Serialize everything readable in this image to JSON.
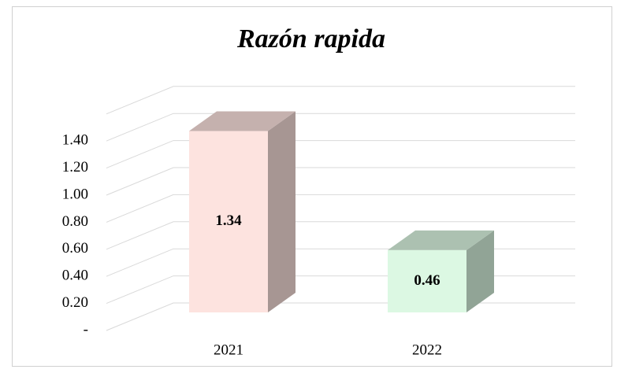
{
  "chart_data": {
    "type": "bar3d",
    "title": "Razón rapida",
    "categories": [
      "2021",
      "2022"
    ],
    "values": [
      1.34,
      0.46
    ],
    "colors": [
      "#fde3df",
      "#dcf8e3"
    ],
    "ylim": [
      0,
      1.6
    ],
    "yticks": [
      {
        "value": 0,
        "label": "-"
      },
      {
        "value": 0.2,
        "label": "0.20"
      },
      {
        "value": 0.4,
        "label": "0.40"
      },
      {
        "value": 0.6,
        "label": "0.60"
      },
      {
        "value": 0.8,
        "label": "0.80"
      },
      {
        "value": 1.0,
        "label": "1.00"
      },
      {
        "value": 1.2,
        "label": "1.20"
      },
      {
        "value": 1.4,
        "label": "1.40"
      }
    ],
    "grid": true
  }
}
